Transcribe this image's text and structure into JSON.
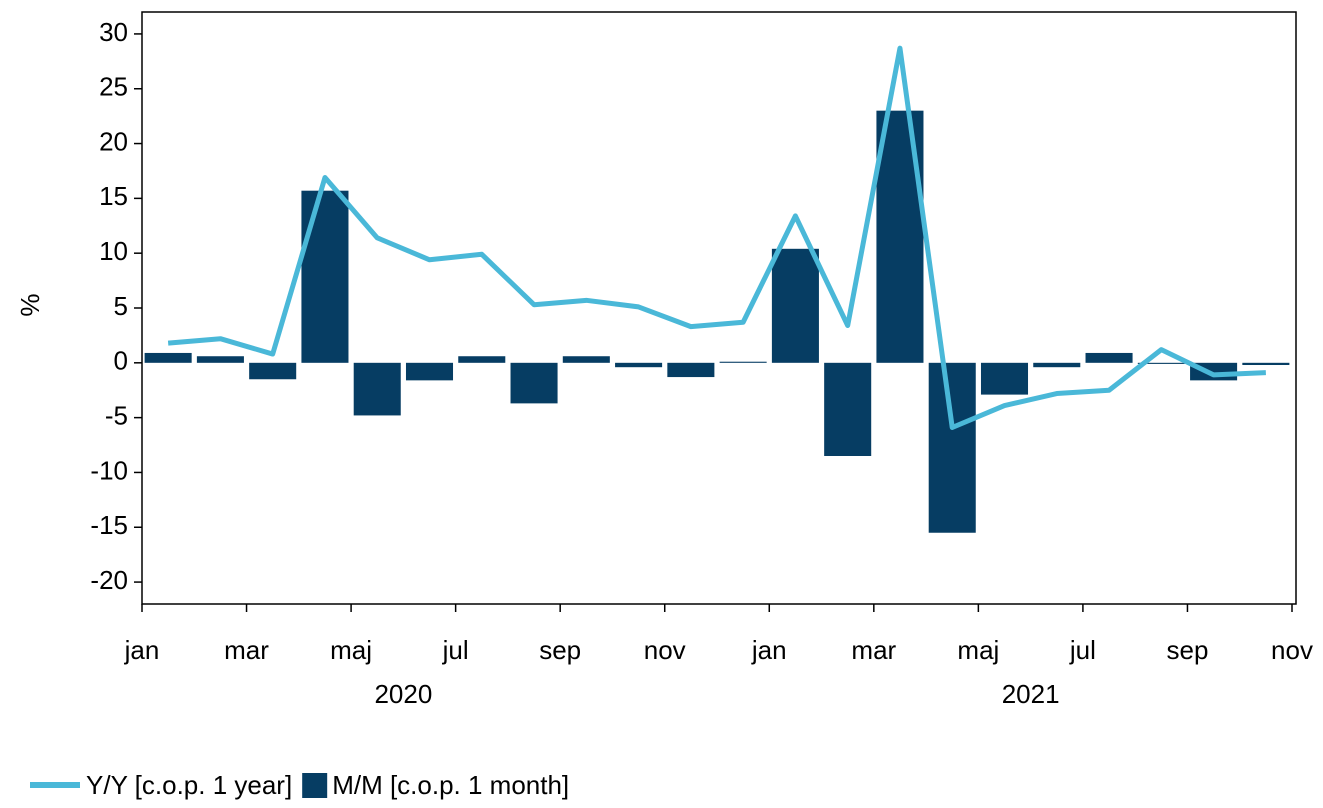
{
  "chart_data": {
    "type": "bar_line",
    "y_label": "%",
    "categories": [
      "jan",
      null,
      "mar",
      null,
      "maj",
      null,
      "jul",
      null,
      "sep",
      null,
      "nov",
      null,
      "jan",
      null,
      "mar",
      null,
      "maj",
      null,
      "jul",
      null,
      "sep",
      null,
      "nov"
    ],
    "x_groups": [
      "2020",
      "2021"
    ],
    "series": [
      {
        "name": "Y/Y [c.o.p. 1 year]",
        "type": "line",
        "color": "#4ab8d8",
        "values": [
          1.8,
          2.2,
          0.8,
          16.9,
          11.4,
          9.4,
          9.9,
          5.3,
          5.7,
          5.1,
          3.3,
          3.7,
          13.4,
          3.4,
          28.7,
          -5.9,
          -3.9,
          -2.8,
          -2.5,
          1.2,
          -1.1,
          -0.9,
          null
        ]
      },
      {
        "name": "M/M [c.o.p. 1 month]",
        "type": "bar",
        "color": "#063d63",
        "values": [
          0.9,
          0.6,
          -1.5,
          15.7,
          -4.8,
          -1.6,
          0.6,
          -3.7,
          0.6,
          -0.4,
          -1.3,
          0.1,
          10.4,
          -8.5,
          23.0,
          -15.5,
          -2.9,
          -0.4,
          0.9,
          -0.1,
          -1.6,
          -0.2,
          null
        ]
      }
    ],
    "ylim": [
      -22,
      32
    ],
    "yticks": [
      -20,
      -15,
      -10,
      -5,
      0,
      5,
      10,
      15,
      20,
      25,
      30
    ],
    "grid": false,
    "legend": "bottom-left"
  }
}
